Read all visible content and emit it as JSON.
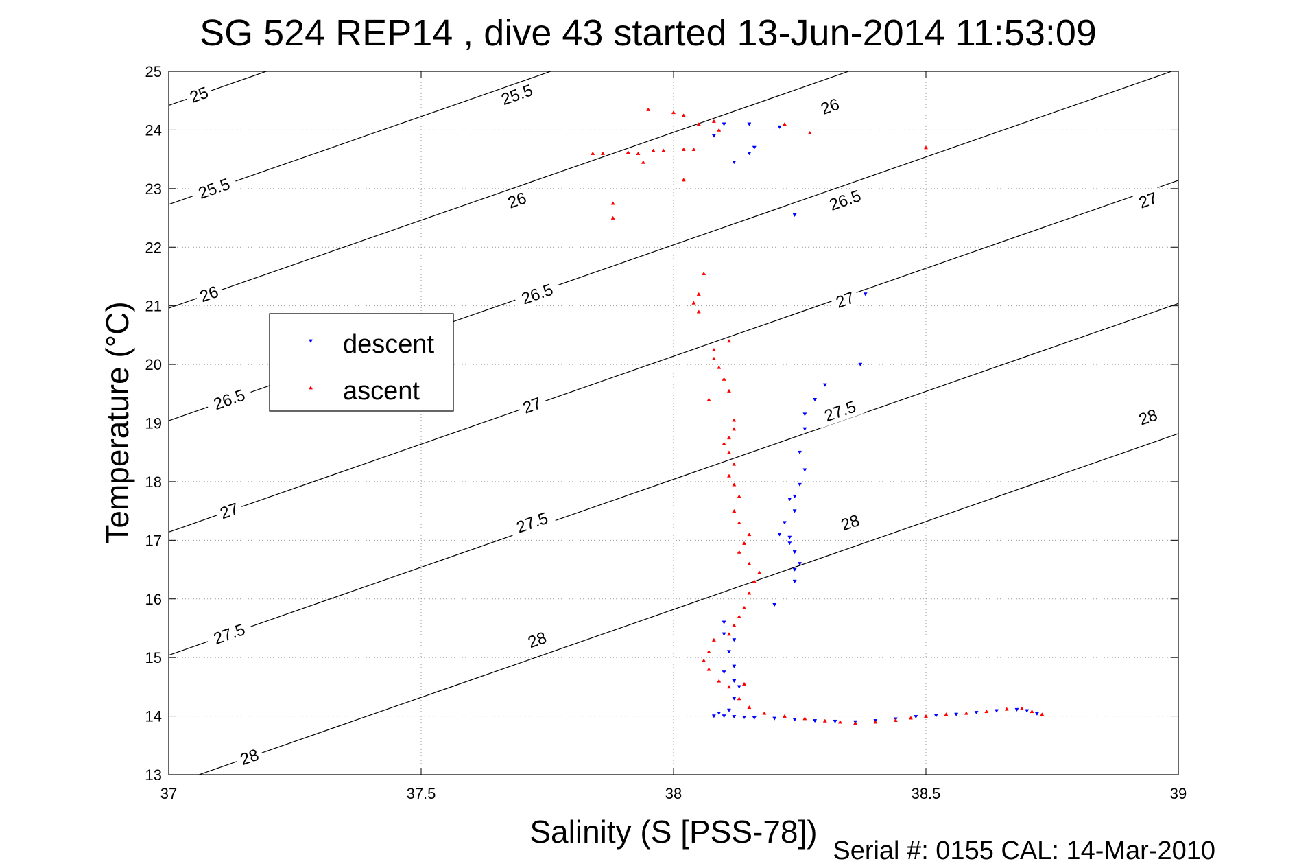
{
  "chart_data": {
    "type": "scatter",
    "title": "SG 524   REP14  , dive 43 started 13-Jun-2014 11:53:09",
    "xlabel": "Salinity (S [PSS-78])",
    "ylabel": "Temperature (°C)",
    "footer": "Serial #: 0155  CAL: 14-Mar-2010",
    "xlim": [
      37,
      39
    ],
    "ylim": [
      13,
      25
    ],
    "xticks": [
      "37",
      "37.5",
      "38",
      "38.5",
      "39"
    ],
    "yticks": [
      "13",
      "14",
      "15",
      "16",
      "17",
      "18",
      "19",
      "20",
      "21",
      "22",
      "23",
      "24",
      "25"
    ],
    "grid": true,
    "legend_position": "left",
    "colors": {
      "descent": "#0000ff",
      "ascent": "#ff0000",
      "contour": "#000000"
    },
    "density_contours": [
      {
        "level": "25",
        "labels": [
          [
            37.06,
            24.6
          ]
        ]
      },
      {
        "level": "25.5",
        "labels": [
          [
            37.09,
            23.0
          ],
          [
            37.69,
            24.6
          ]
        ]
      },
      {
        "level": "26",
        "labels": [
          [
            37.08,
            21.2
          ],
          [
            37.69,
            22.8
          ],
          [
            38.31,
            24.4
          ]
        ]
      },
      {
        "level": "26.5",
        "labels": [
          [
            37.12,
            19.4
          ],
          [
            37.73,
            21.2
          ],
          [
            38.34,
            22.8
          ]
        ]
      },
      {
        "level": "27",
        "labels": [
          [
            37.12,
            17.5
          ],
          [
            37.72,
            19.3
          ],
          [
            38.34,
            21.1
          ],
          [
            38.94,
            22.8
          ]
        ]
      },
      {
        "level": "27.5",
        "labels": [
          [
            37.12,
            15.4
          ],
          [
            37.72,
            17.3
          ],
          [
            38.33,
            19.2
          ]
        ]
      },
      {
        "level": "28",
        "labels": [
          [
            37.16,
            13.3
          ],
          [
            37.73,
            15.3
          ],
          [
            38.35,
            17.3
          ],
          [
            38.94,
            19.1
          ]
        ]
      }
    ],
    "series": [
      {
        "name": "descent",
        "marker": "triangle-down",
        "points": [
          [
            38.1,
            24.1
          ],
          [
            38.15,
            24.1
          ],
          [
            38.21,
            24.05
          ],
          [
            38.08,
            23.9
          ],
          [
            38.16,
            23.7
          ],
          [
            38.15,
            23.6
          ],
          [
            38.12,
            23.45
          ],
          [
            38.24,
            22.55
          ],
          [
            38.38,
            21.2
          ],
          [
            38.37,
            20.0
          ],
          [
            38.3,
            19.65
          ],
          [
            38.28,
            19.4
          ],
          [
            38.26,
            19.15
          ],
          [
            38.26,
            18.9
          ],
          [
            38.25,
            18.5
          ],
          [
            38.26,
            18.2
          ],
          [
            38.25,
            17.95
          ],
          [
            38.24,
            17.75
          ],
          [
            38.23,
            17.7
          ],
          [
            38.24,
            17.5
          ],
          [
            38.22,
            17.3
          ],
          [
            38.21,
            17.1
          ],
          [
            38.23,
            17.05
          ],
          [
            38.23,
            16.95
          ],
          [
            38.24,
            16.8
          ],
          [
            38.25,
            16.6
          ],
          [
            38.24,
            16.5
          ],
          [
            38.24,
            16.3
          ],
          [
            38.2,
            15.9
          ],
          [
            38.1,
            15.6
          ],
          [
            38.1,
            15.4
          ],
          [
            38.12,
            15.3
          ],
          [
            38.11,
            15.1
          ],
          [
            38.12,
            14.85
          ],
          [
            38.1,
            14.75
          ],
          [
            38.12,
            14.6
          ],
          [
            38.13,
            14.5
          ],
          [
            38.12,
            14.3
          ],
          [
            38.11,
            14.1
          ],
          [
            38.09,
            14.05
          ],
          [
            38.08,
            14.0
          ],
          [
            38.1,
            14.0
          ],
          [
            38.12,
            13.99
          ],
          [
            38.14,
            13.98
          ],
          [
            38.16,
            13.97
          ],
          [
            38.2,
            13.96
          ],
          [
            38.24,
            13.94
          ],
          [
            38.28,
            13.92
          ],
          [
            38.32,
            13.91
          ],
          [
            38.36,
            13.9
          ],
          [
            38.4,
            13.92
          ],
          [
            38.44,
            13.95
          ],
          [
            38.48,
            13.99
          ],
          [
            38.52,
            14.01
          ],
          [
            38.56,
            14.03
          ],
          [
            38.6,
            14.06
          ],
          [
            38.64,
            14.09
          ],
          [
            38.68,
            14.11
          ],
          [
            38.7,
            14.09
          ],
          [
            38.72,
            14.04
          ]
        ]
      },
      {
        "name": "ascent",
        "marker": "triangle-up",
        "points": [
          [
            37.95,
            24.35
          ],
          [
            38.0,
            24.3
          ],
          [
            38.02,
            24.25
          ],
          [
            38.08,
            24.15
          ],
          [
            38.09,
            24.0
          ],
          [
            38.22,
            24.1
          ],
          [
            38.27,
            23.95
          ],
          [
            38.05,
            24.1
          ],
          [
            37.84,
            23.6
          ],
          [
            37.86,
            23.6
          ],
          [
            37.91,
            23.62
          ],
          [
            37.93,
            23.6
          ],
          [
            37.96,
            23.65
          ],
          [
            37.98,
            23.65
          ],
          [
            38.02,
            23.67
          ],
          [
            38.04,
            23.67
          ],
          [
            38.5,
            23.7
          ],
          [
            37.94,
            23.45
          ],
          [
            38.02,
            23.15
          ],
          [
            37.88,
            22.75
          ],
          [
            37.88,
            22.5
          ],
          [
            38.06,
            21.55
          ],
          [
            38.05,
            21.2
          ],
          [
            38.04,
            21.05
          ],
          [
            38.05,
            20.9
          ],
          [
            38.11,
            20.4
          ],
          [
            38.08,
            20.25
          ],
          [
            38.08,
            20.1
          ],
          [
            38.09,
            19.95
          ],
          [
            38.1,
            19.75
          ],
          [
            38.11,
            19.55
          ],
          [
            38.07,
            19.4
          ],
          [
            38.12,
            19.05
          ],
          [
            38.12,
            18.9
          ],
          [
            38.11,
            18.75
          ],
          [
            38.1,
            18.65
          ],
          [
            38.11,
            18.5
          ],
          [
            38.12,
            18.3
          ],
          [
            38.11,
            18.1
          ],
          [
            38.12,
            17.95
          ],
          [
            38.13,
            17.75
          ],
          [
            38.12,
            17.5
          ],
          [
            38.13,
            17.3
          ],
          [
            38.15,
            17.1
          ],
          [
            38.14,
            16.95
          ],
          [
            38.13,
            16.8
          ],
          [
            38.15,
            16.6
          ],
          [
            38.17,
            16.45
          ],
          [
            38.16,
            16.3
          ],
          [
            38.15,
            16.1
          ],
          [
            38.14,
            15.85
          ],
          [
            38.13,
            15.7
          ],
          [
            38.12,
            15.55
          ],
          [
            38.11,
            15.4
          ],
          [
            38.08,
            15.3
          ],
          [
            38.07,
            15.1
          ],
          [
            38.06,
            14.95
          ],
          [
            38.07,
            14.8
          ],
          [
            38.09,
            14.6
          ],
          [
            38.11,
            14.5
          ],
          [
            38.14,
            14.55
          ],
          [
            38.13,
            14.3
          ],
          [
            38.15,
            14.15
          ],
          [
            38.18,
            14.05
          ],
          [
            38.22,
            14.0
          ],
          [
            38.26,
            13.96
          ],
          [
            38.3,
            13.92
          ],
          [
            38.33,
            13.9
          ],
          [
            38.36,
            13.88
          ],
          [
            38.4,
            13.9
          ],
          [
            38.44,
            13.93
          ],
          [
            38.47,
            13.97
          ],
          [
            38.5,
            14.0
          ],
          [
            38.54,
            14.03
          ],
          [
            38.58,
            14.05
          ],
          [
            38.62,
            14.08
          ],
          [
            38.66,
            14.12
          ],
          [
            38.69,
            14.13
          ],
          [
            38.71,
            14.08
          ],
          [
            38.73,
            14.03
          ]
        ]
      }
    ]
  }
}
